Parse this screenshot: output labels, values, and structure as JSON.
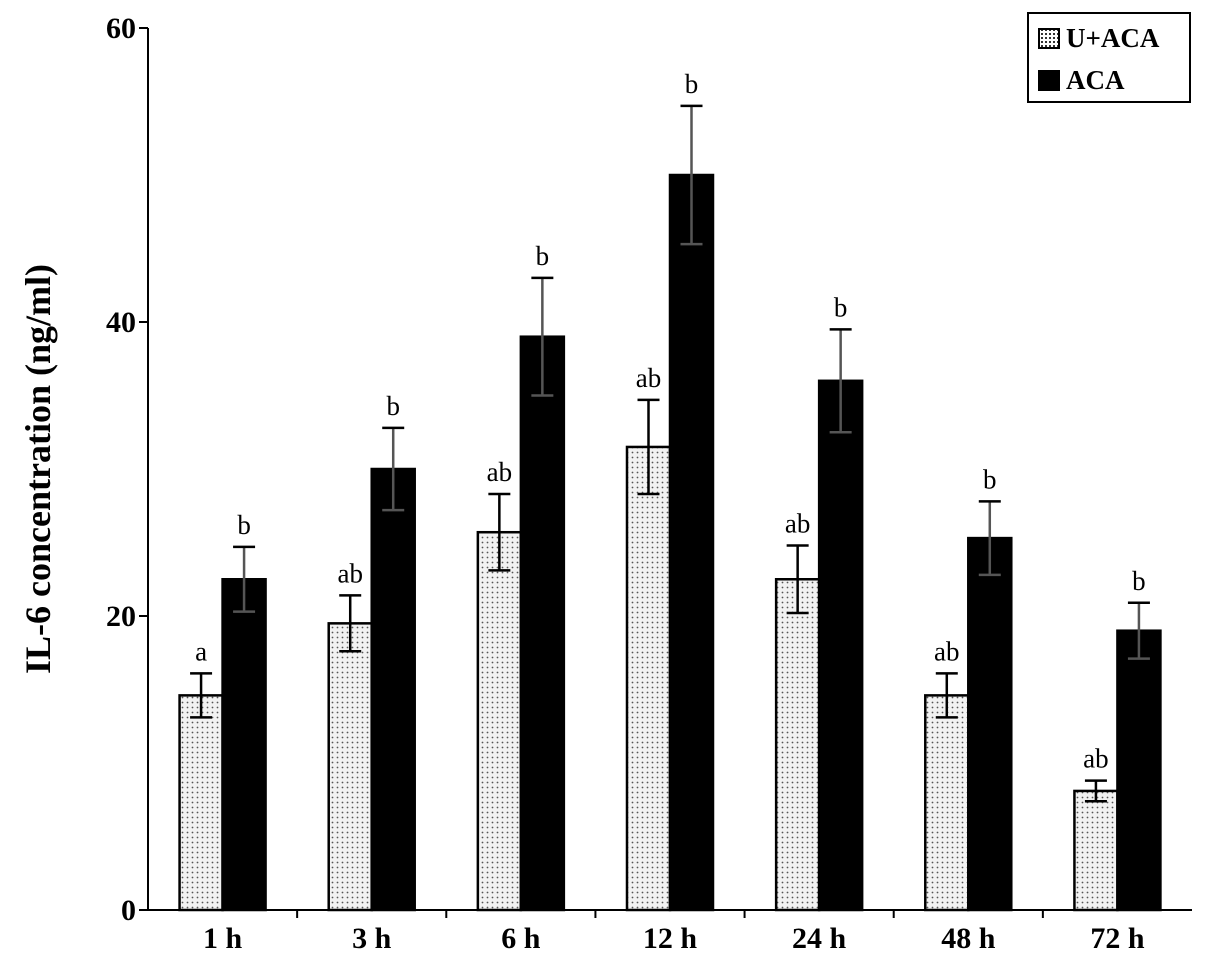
{
  "chart_data": {
    "type": "bar",
    "title": "",
    "xlabel": "",
    "ylabel": "IL-6 concentration (ng/ml)",
    "ylim": [
      0,
      60
    ],
    "yticks": [
      "0",
      "20",
      "40",
      "60"
    ],
    "categories": [
      "1 h",
      "3 h",
      "6 h",
      "12 h",
      "24 h",
      "48 h",
      "72 h"
    ],
    "legend_position": "top-right",
    "grid": false,
    "series": [
      {
        "name": "U+ACA",
        "pattern": "dotted",
        "fill": "#eeeeee",
        "values": [
          14.6,
          19.5,
          25.7,
          31.5,
          22.5,
          14.6,
          8.1
        ],
        "errors": [
          1.5,
          1.9,
          2.6,
          3.2,
          2.3,
          1.5,
          0.7
        ],
        "labels": [
          "a",
          "ab",
          "ab",
          "ab",
          "ab",
          "ab",
          "ab"
        ]
      },
      {
        "name": "ACA",
        "pattern": "solid",
        "fill": "#000000",
        "values": [
          22.5,
          30.0,
          39.0,
          50.0,
          36.0,
          25.3,
          19.0
        ],
        "errors": [
          2.2,
          2.8,
          4.0,
          4.7,
          3.5,
          2.5,
          1.9
        ],
        "labels": [
          "b",
          "b",
          "b",
          "b",
          "b",
          "b",
          "b"
        ]
      }
    ]
  }
}
